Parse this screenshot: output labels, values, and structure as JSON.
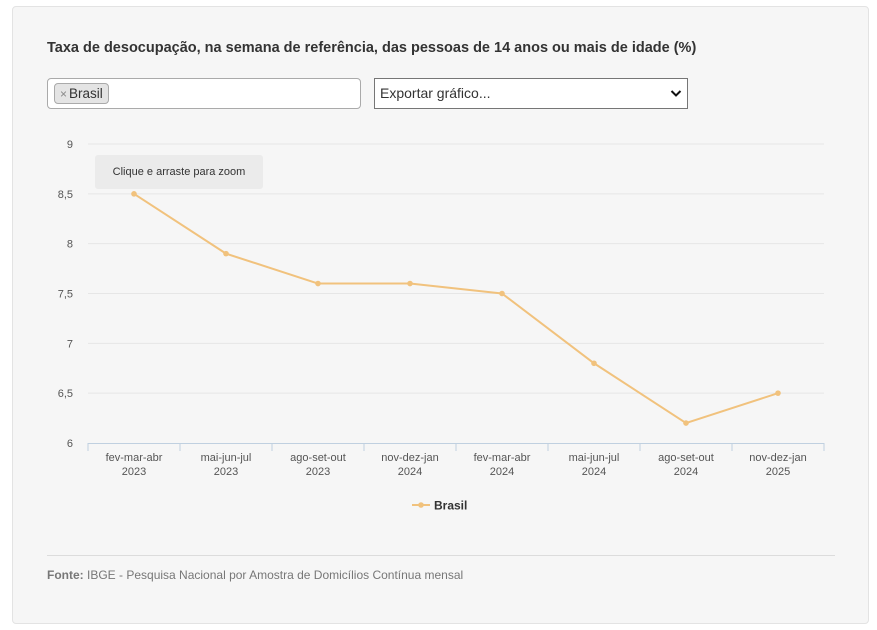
{
  "header": {
    "title": "Taxa de desocupação, na semana de referência, das pessoas de 14 anos ou mais de idade (%)"
  },
  "filter": {
    "remove_symbol": "×",
    "selected": "Brasil"
  },
  "export": {
    "label": "Exportar gráfico..."
  },
  "zoom_hint": "Clique e arraste para zoom",
  "chart_data": {
    "type": "line",
    "title": "Taxa de desocupação, na semana de referência, das pessoas de 14 anos ou mais de idade (%)",
    "categories": [
      [
        "fev-mar-abr",
        "2023"
      ],
      [
        "mai-jun-jul",
        "2023"
      ],
      [
        "ago-set-out",
        "2023"
      ],
      [
        "nov-dez-jan",
        "2024"
      ],
      [
        "fev-mar-abr",
        "2024"
      ],
      [
        "mai-jun-jul",
        "2024"
      ],
      [
        "ago-set-out",
        "2024"
      ],
      [
        "nov-dez-jan",
        "2025"
      ]
    ],
    "series": [
      {
        "name": "Brasil",
        "values": [
          8.5,
          7.9,
          7.6,
          7.6,
          7.5,
          6.8,
          6.2,
          6.5
        ],
        "color": "#f1c27d"
      }
    ],
    "y_ticks": [
      "9",
      "8,5",
      "8",
      "7,5",
      "7",
      "6,5",
      "6"
    ],
    "ylim": [
      6,
      9
    ],
    "grid": true,
    "legend": "bottom-center"
  },
  "footer": {
    "source_label": "Fonte:",
    "source_text": "IBGE - Pesquisa Nacional por Amostra de Domicílios Contínua mensal"
  }
}
